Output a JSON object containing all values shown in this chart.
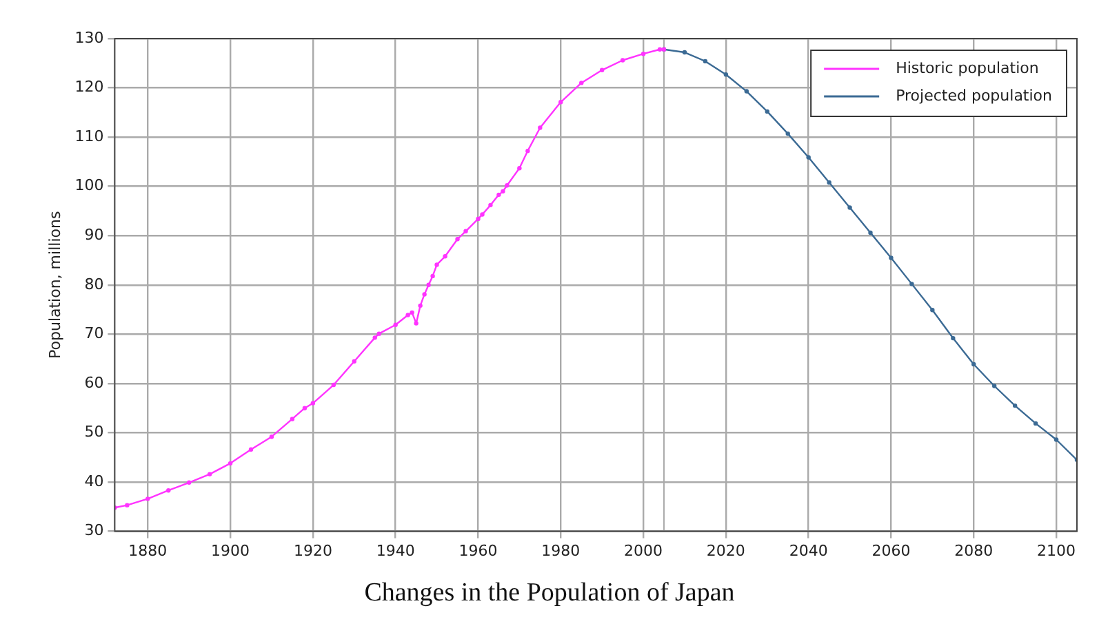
{
  "chart_data": {
    "type": "line",
    "title": "Changes in the Population of Japan",
    "ylabel": "Population, millions",
    "xlim": [
      1872,
      2105
    ],
    "xticks": [
      1880,
      1900,
      1920,
      1940,
      1960,
      1980,
      2000,
      2020,
      2040,
      2060,
      2080,
      2100
    ],
    "ylim": [
      30,
      130
    ],
    "yticks": [
      30,
      40,
      50,
      60,
      70,
      80,
      90,
      100,
      110,
      120,
      130
    ],
    "grid": true,
    "legend": "top right",
    "marker": "circle",
    "line_style": "solid",
    "ref_lines": [
      {
        "axis": "x",
        "value": 2005,
        "color": "#aaaaaa"
      }
    ],
    "series": [
      {
        "name": "Historic population",
        "color": "#ff33ff",
        "x": [
          1872,
          1875,
          1880,
          1885,
          1890,
          1895,
          1900,
          1905,
          1910,
          1915,
          1918,
          1920,
          1925,
          1930,
          1935,
          1936,
          1940,
          1943,
          1944,
          1945,
          1946,
          1947,
          1948,
          1949,
          1950,
          1952,
          1955,
          1957,
          1960,
          1961,
          1963,
          1965,
          1966,
          1967,
          1970,
          1972,
          1975,
          1980,
          1985,
          1990,
          1995,
          2000,
          2004,
          2005
        ],
        "values": [
          34.8,
          35.3,
          36.6,
          38.3,
          39.9,
          41.6,
          43.8,
          46.6,
          49.2,
          52.8,
          55.0,
          56.0,
          59.7,
          64.5,
          69.3,
          70.1,
          71.9,
          73.9,
          74.4,
          72.2,
          75.8,
          78.1,
          80.0,
          81.8,
          84.1,
          85.8,
          89.3,
          90.9,
          93.4,
          94.3,
          96.2,
          98.3,
          99.0,
          100.2,
          103.7,
          107.2,
          111.9,
          117.1,
          121.0,
          123.6,
          125.6,
          126.9,
          127.8,
          127.8
        ]
      },
      {
        "name": "Projected population",
        "color": "#3b6a94",
        "x": [
          2005,
          2010,
          2015,
          2020,
          2025,
          2030,
          2035,
          2040,
          2045,
          2050,
          2055,
          2060,
          2065,
          2070,
          2075,
          2080,
          2085,
          2090,
          2095,
          2100,
          2105
        ],
        "values": [
          127.8,
          127.2,
          125.4,
          122.7,
          119.3,
          115.2,
          110.7,
          105.9,
          100.8,
          95.7,
          90.6,
          85.5,
          80.2,
          74.9,
          69.2,
          63.9,
          59.5,
          55.5,
          51.9,
          48.6,
          44.5
        ]
      }
    ]
  }
}
